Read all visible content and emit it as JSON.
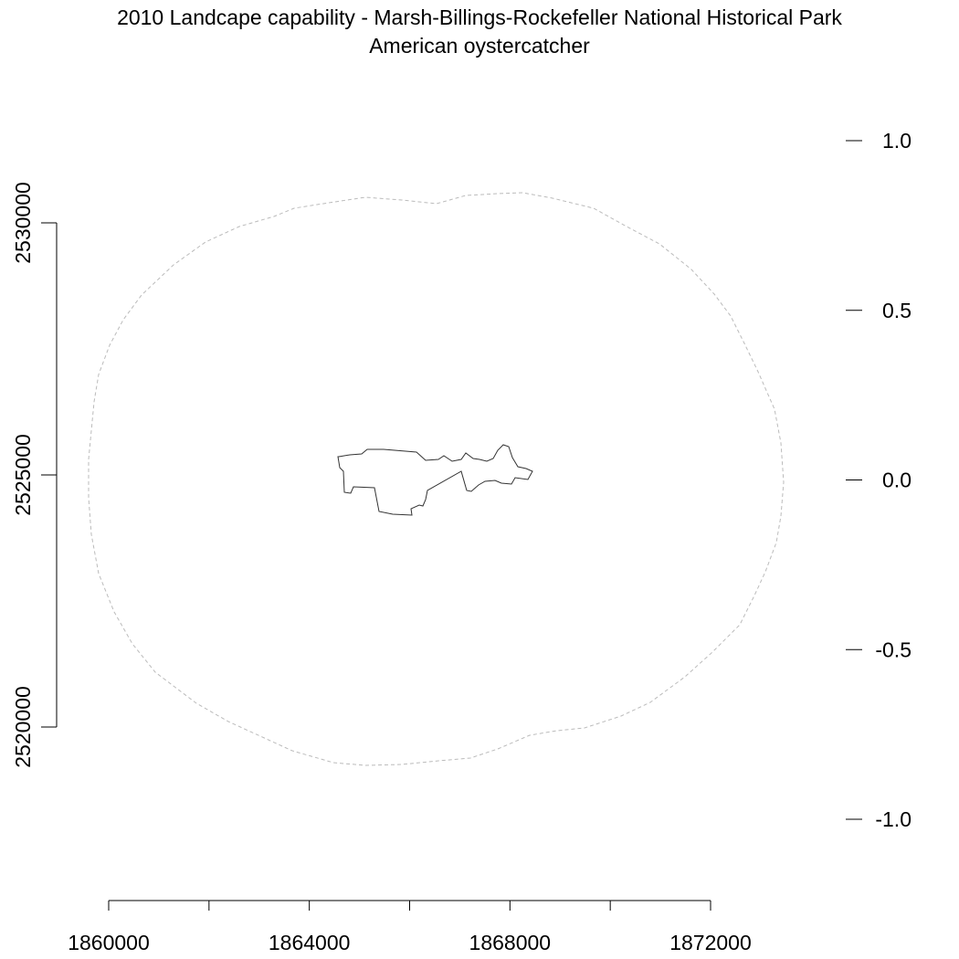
{
  "title": {
    "line1": "2010 Landcape capability - Marsh-Billings-Rockefeller National Historical Park",
    "line2": "American oystercatcher"
  },
  "colors": {
    "background": "#ffffff",
    "park_boundary": "#333333",
    "buffer_boundary": "#bbbbbb",
    "axes": "#000000"
  },
  "map": {
    "x_axis": {
      "range": [
        1860000,
        1872000
      ],
      "minor_ticks": [
        1860000,
        1862000,
        1864000,
        1866000,
        1868000,
        1870000,
        1872000
      ],
      "labels": [
        {
          "value": 1860000,
          "text": "1860000"
        },
        {
          "value": 1864000,
          "text": "1864000"
        },
        {
          "value": 1868000,
          "text": "1868000"
        },
        {
          "value": 1872000,
          "text": "1872000"
        }
      ]
    },
    "y_axis": {
      "range": [
        2520000,
        2530000
      ],
      "labels": [
        {
          "value": 2520000,
          "text": "2520000"
        },
        {
          "value": 2525000,
          "text": "2525000"
        },
        {
          "value": 2530000,
          "text": "2530000"
        }
      ]
    },
    "legend_scale": {
      "range": [
        -1.0,
        1.0
      ],
      "labels": [
        {
          "value": 1.0,
          "text": "1.0"
        },
        {
          "value": 0.5,
          "text": "0.5"
        },
        {
          "value": 0.0,
          "text": "0.0"
        },
        {
          "value": -0.5,
          "text": "-0.5"
        },
        {
          "value": -1.0,
          "text": "-1.0"
        }
      ]
    },
    "layers": [
      {
        "name": "park-boundary",
        "style": "solid"
      },
      {
        "name": "buffer-boundary",
        "style": "dashed"
      }
    ]
  }
}
